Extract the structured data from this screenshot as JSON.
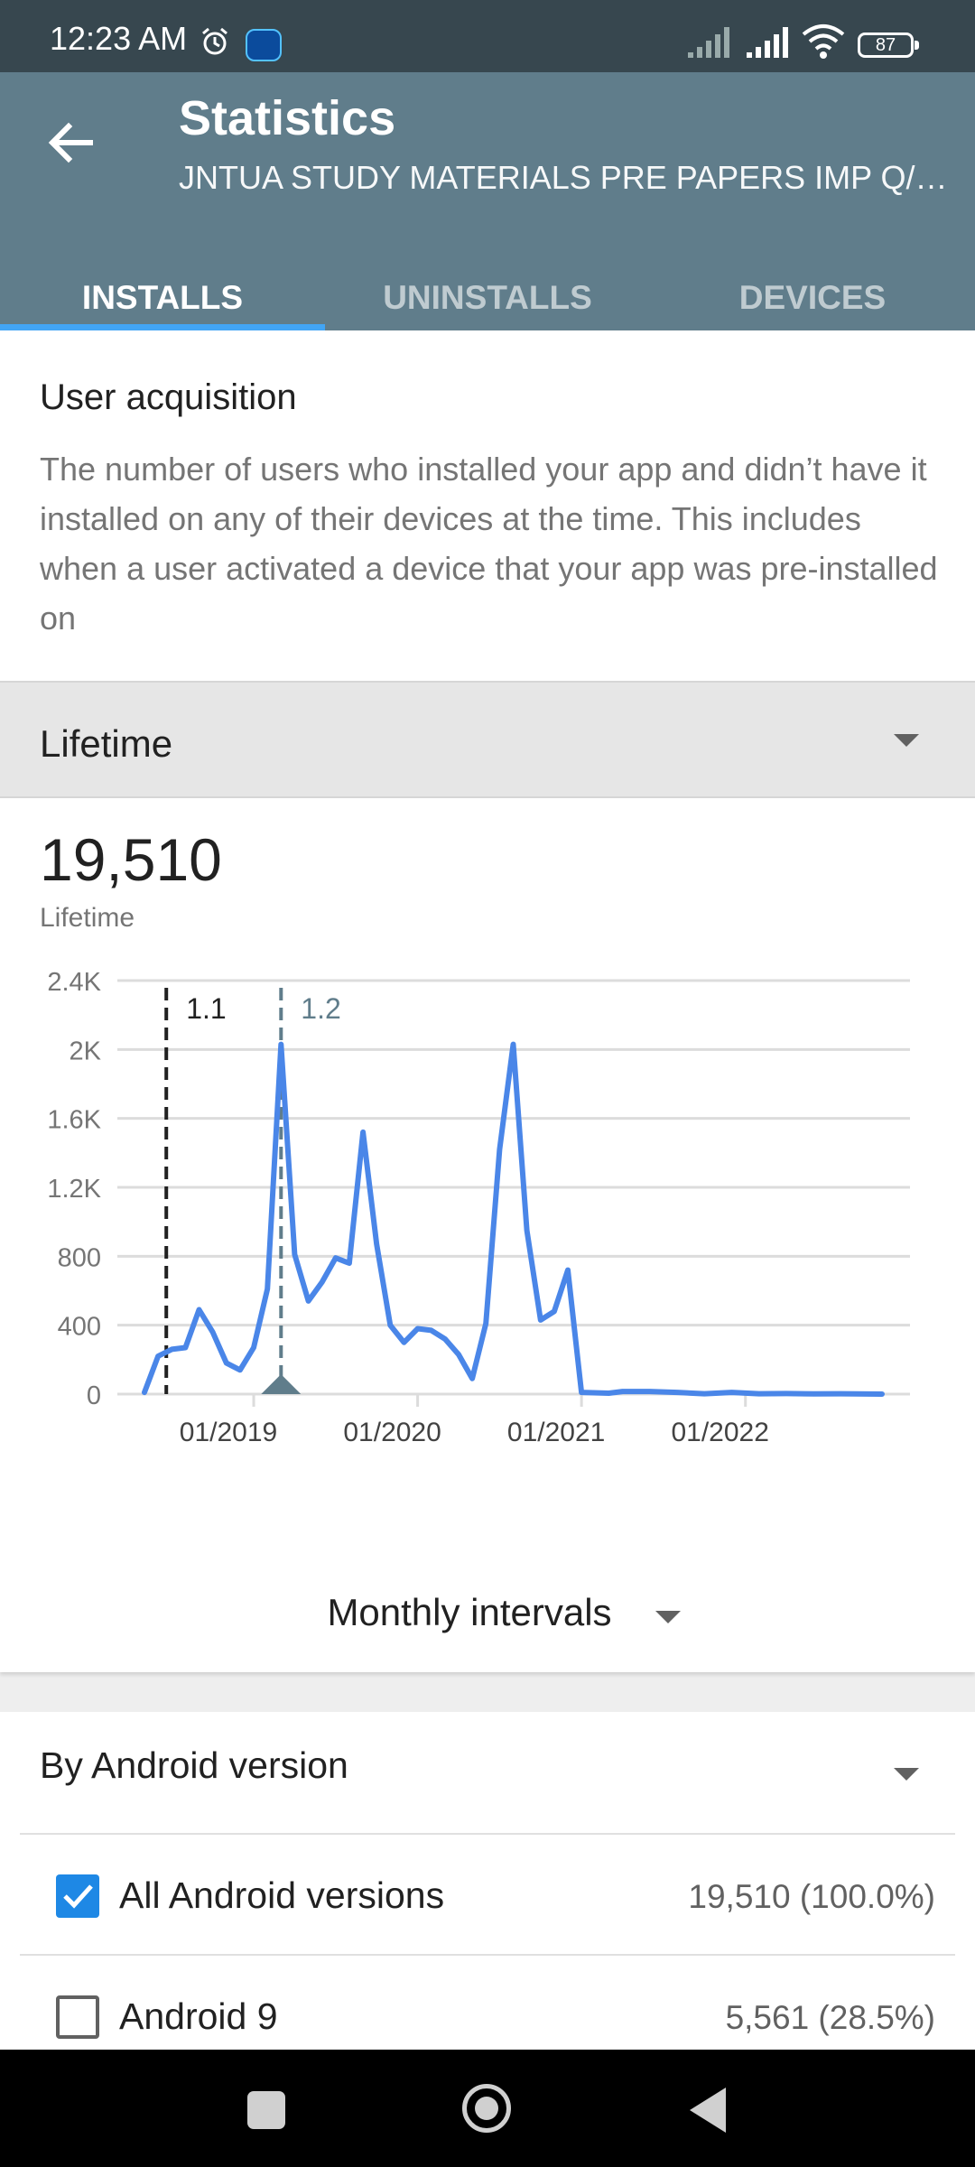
{
  "status_bar": {
    "time": "12:23 AM",
    "battery": "87",
    "icons": [
      "alarm-icon",
      "app-notification-icon",
      "signal-icon",
      "signal-icon",
      "wifi-icon",
      "battery-icon"
    ]
  },
  "toolbar": {
    "title": "Statistics",
    "subtitle": "JNTUA STUDY MATERIALS PRE PAPERS IMP Q/A AND NOTES",
    "back_icon": "arrow-back-icon"
  },
  "tabs": [
    {
      "label": "INSTALLS",
      "active": true
    },
    {
      "label": "UNINSTALLS",
      "active": false
    },
    {
      "label": "DEVICES",
      "active": false
    }
  ],
  "description": {
    "heading": "User acquisition",
    "body": "The number of users who installed your app and didn’t have it installed on any of their devices at the time. This includes when a user activated a device that your app was pre-installed on"
  },
  "period": {
    "selected": "Lifetime"
  },
  "summary": {
    "total": "19,510",
    "label": "Lifetime"
  },
  "interval": {
    "selected": "Monthly intervals"
  },
  "colors": {
    "accent": "#42a5f5",
    "line": "#4a86e8",
    "toolbar": "#607d8b",
    "statusbar": "#37474f",
    "checkbox": "#1e88e5"
  },
  "chart_data": {
    "type": "line",
    "ylim": [
      0,
      2400
    ],
    "yticks": [
      {
        "value": 0,
        "label": "0"
      },
      {
        "value": 400,
        "label": "400"
      },
      {
        "value": 800,
        "label": "800"
      },
      {
        "value": 1200,
        "label": "1.2K"
      },
      {
        "value": 1600,
        "label": "1.6K"
      },
      {
        "value": 2000,
        "label": "2K"
      },
      {
        "value": 2400,
        "label": "2.4K"
      }
    ],
    "x_start": "2018-05",
    "x_end": "2022-11",
    "xticks": [
      {
        "month": "2019-01",
        "label": "01/2019"
      },
      {
        "month": "2020-01",
        "label": "01/2020"
      },
      {
        "month": "2021-01",
        "label": "01/2021"
      },
      {
        "month": "2022-01",
        "label": "01/2022"
      }
    ],
    "release_markers": [
      {
        "label": "1.1",
        "month": "2018-06.6",
        "style": "dashed-dark"
      },
      {
        "label": "1.2",
        "month": "2019-03",
        "style": "dashed-teal"
      }
    ],
    "series": [
      {
        "values": [
          {
            "x": "2018-05",
            "y": 10
          },
          {
            "x": "2018-06",
            "y": 220
          },
          {
            "x": "2018-07",
            "y": 260
          },
          {
            "x": "2018-08",
            "y": 270
          },
          {
            "x": "2018-09",
            "y": 490
          },
          {
            "x": "2018-10",
            "y": 360
          },
          {
            "x": "2018-11",
            "y": 180
          },
          {
            "x": "2018-12",
            "y": 140
          },
          {
            "x": "2019-01",
            "y": 270
          },
          {
            "x": "2019-02",
            "y": 610
          },
          {
            "x": "2019-03",
            "y": 2030
          },
          {
            "x": "2019-04",
            "y": 810
          },
          {
            "x": "2019-05",
            "y": 540
          },
          {
            "x": "2019-06",
            "y": 650
          },
          {
            "x": "2019-07",
            "y": 790
          },
          {
            "x": "2019-08",
            "y": 760
          },
          {
            "x": "2019-09",
            "y": 1520
          },
          {
            "x": "2019-10",
            "y": 870
          },
          {
            "x": "2019-11",
            "y": 400
          },
          {
            "x": "2019-12",
            "y": 300
          },
          {
            "x": "2020-01",
            "y": 380
          },
          {
            "x": "2020-02",
            "y": 370
          },
          {
            "x": "2020-03",
            "y": 320
          },
          {
            "x": "2020-04",
            "y": 230
          },
          {
            "x": "2020-05",
            "y": 90
          },
          {
            "x": "2020-06",
            "y": 410
          },
          {
            "x": "2020-07",
            "y": 1420
          },
          {
            "x": "2020-08",
            "y": 2030
          },
          {
            "x": "2020-09",
            "y": 950
          },
          {
            "x": "2020-10",
            "y": 430
          },
          {
            "x": "2020-11",
            "y": 480
          },
          {
            "x": "2020-12",
            "y": 720
          },
          {
            "x": "2021-01",
            "y": 10
          },
          {
            "x": "2021-03",
            "y": 5
          },
          {
            "x": "2021-04",
            "y": 15
          },
          {
            "x": "2021-06",
            "y": 15
          },
          {
            "x": "2021-08",
            "y": 10
          },
          {
            "x": "2021-10",
            "y": 2
          },
          {
            "x": "2021-12",
            "y": 10
          },
          {
            "x": "2022-02",
            "y": 2
          },
          {
            "x": "2022-04",
            "y": 3
          },
          {
            "x": "2022-06",
            "y": 1
          },
          {
            "x": "2022-08",
            "y": 2
          },
          {
            "x": "2022-11",
            "y": 0
          }
        ]
      }
    ]
  },
  "android_versions": {
    "heading": "By Android version",
    "rows": [
      {
        "label": "All Android versions",
        "value": "19,510 (100.0%)",
        "checked": true
      },
      {
        "label": "Android 9",
        "value": "5,561 (28.5%)",
        "checked": false
      }
    ]
  }
}
